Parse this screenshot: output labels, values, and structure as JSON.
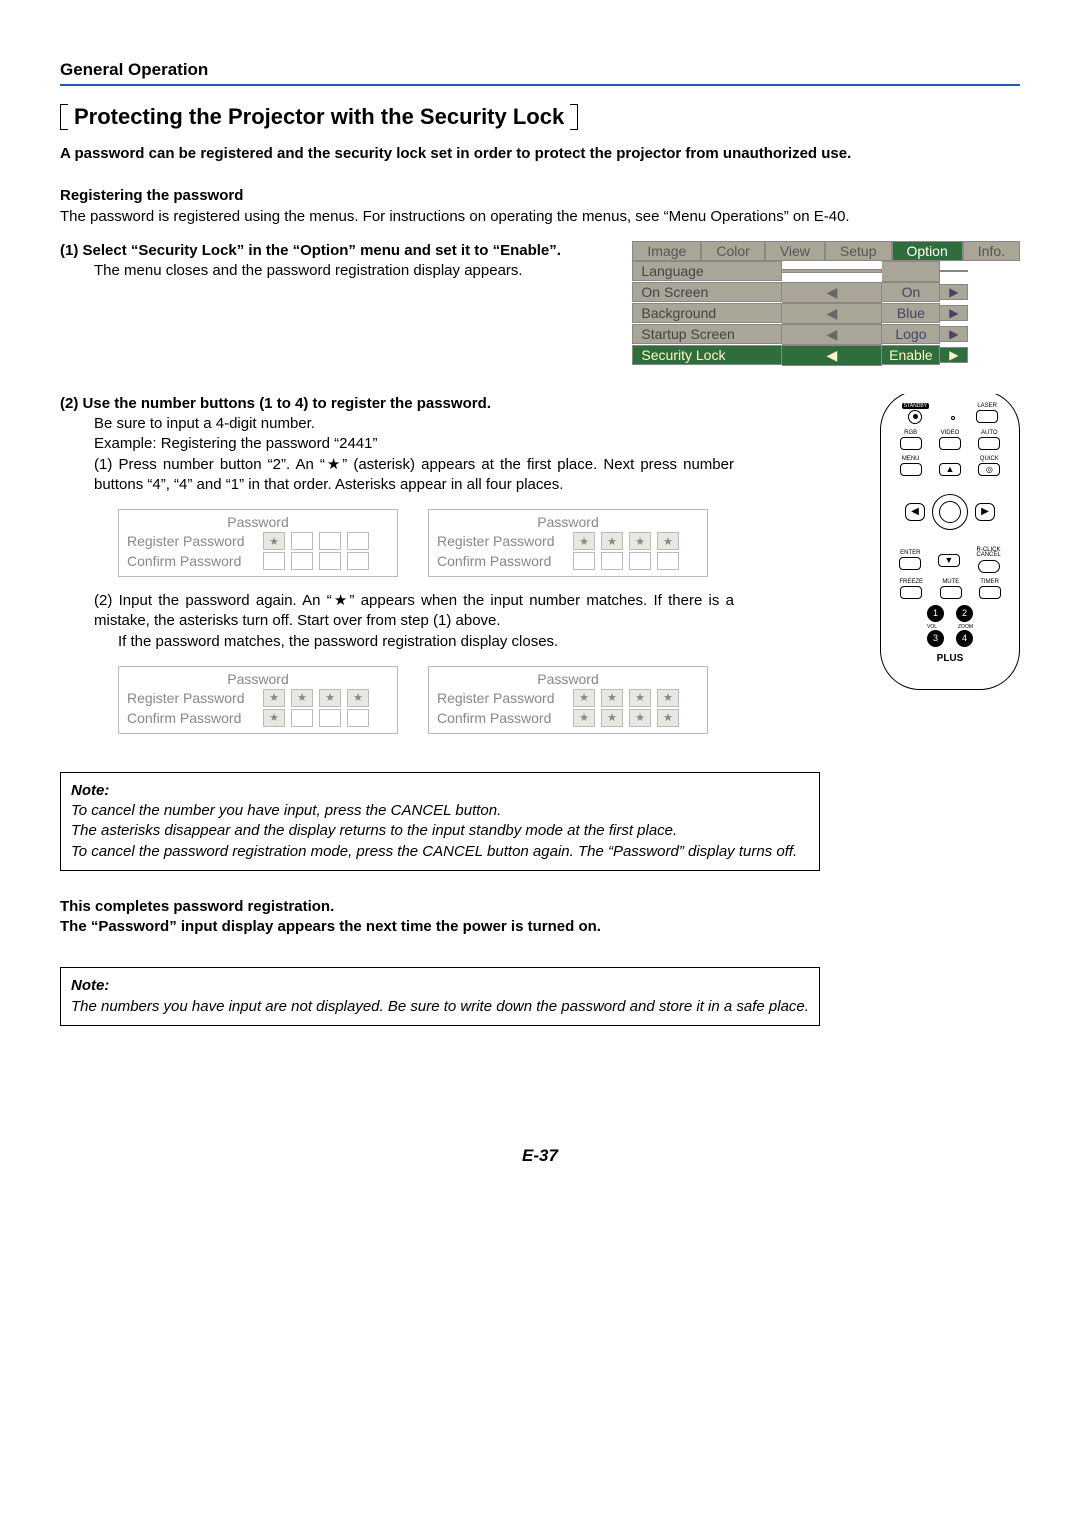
{
  "header": {
    "section": "General Operation"
  },
  "title": "Protecting the Projector with the Security Lock",
  "intro": "A password can be registered and the security lock set in order to protect the projector from unauthorized use.",
  "reg_hdr": "Registering the password",
  "reg_body": "The password is registered using the menus. For instructions on operating the menus, see “Menu Operations” on E-40.",
  "menu": {
    "tabs": [
      "Image",
      "Color",
      "View",
      "Setup",
      "Option",
      "Info."
    ],
    "active_tab": 4,
    "rows": [
      {
        "label": "Language",
        "left": "",
        "value": "↲",
        "right": "",
        "sel": false,
        "lang": true
      },
      {
        "label": "On Screen",
        "left": "◀",
        "value": "On",
        "right": "▶",
        "sel": false
      },
      {
        "label": "Background",
        "left": "◀",
        "value": "Blue",
        "right": "▶",
        "sel": false
      },
      {
        "label": "Startup Screen",
        "left": "◀",
        "value": "Logo",
        "right": "▶",
        "sel": false
      },
      {
        "label": "Security Lock",
        "left": "◀",
        "value": "Enable",
        "right": "▶",
        "sel": true
      }
    ]
  },
  "step1": {
    "num": "(1)",
    "title": "Select “Security Lock” in the “Option” menu and set it to “Enable”.",
    "body": "The menu closes and the password registration display appears."
  },
  "step2": {
    "num": "(2)",
    "title": "Use the number buttons (1 to 4) to register the password.",
    "l1": "Be sure to input a 4-digit number.",
    "l2": "Example: Registering the password “2441”",
    "sub1_num": "(1)",
    "sub1": "Press number button “2”. An “★” (asterisk) appears at the first place. Next press number buttons “4”, “4” and “1” in that order. Asterisks appear in all four places.",
    "sub2_num": "(2)",
    "sub2": "Input the password again. An “★” appears when the input number matches. If there is a mistake, the asterisks turn off. Start over from step (1) above.",
    "sub2b": "If the password matches, the password registration display closes."
  },
  "pw": {
    "title": "Password",
    "reg": "Register Password",
    "conf": "Confirm Password",
    "star": "★",
    "dialogs1": [
      {
        "reg": [
          true,
          false,
          false,
          false
        ],
        "conf": [
          false,
          false,
          false,
          false
        ]
      },
      {
        "reg": [
          true,
          true,
          true,
          true
        ],
        "conf": [
          false,
          false,
          false,
          false
        ]
      }
    ],
    "dialogs2": [
      {
        "reg": [
          true,
          true,
          true,
          true
        ],
        "conf": [
          true,
          false,
          false,
          false
        ]
      },
      {
        "reg": [
          true,
          true,
          true,
          true
        ],
        "conf": [
          true,
          true,
          true,
          true
        ]
      }
    ]
  },
  "remote": {
    "standby": "STANDBY",
    "laser": "LASER",
    "rgb": "RGB",
    "video": "VIDEO",
    "auto": "AUTO",
    "menu": "MENU",
    "quick": "QUICK",
    "enter": "ENTER",
    "rclick": "R-CLICK",
    "cancel": "CANCEL",
    "freeze": "FREEZE",
    "mute": "MUTE",
    "timer": "TIMER",
    "vol": "VOL",
    "zoom": "ZOOM",
    "n1": "1",
    "n2": "2",
    "n3": "3",
    "n4": "4",
    "plus": "PLUS"
  },
  "note1": {
    "hdr": "Note:",
    "l1": "To cancel the number you have input, press the CANCEL button.",
    "l2": "The asterisks disappear and the display returns to the input standby mode at the first place.",
    "l3": "To cancel the password registration mode, press the CANCEL button again. The “Password” display turns off."
  },
  "complete": {
    "l1": "This completes password registration.",
    "l2": "The “Password” input display appears the next time the power is turned on."
  },
  "note2": {
    "hdr": "Note:",
    "body": "The numbers you have input are not displayed. Be sure to write down the password and store it in a safe place."
  },
  "footer": "E-37"
}
